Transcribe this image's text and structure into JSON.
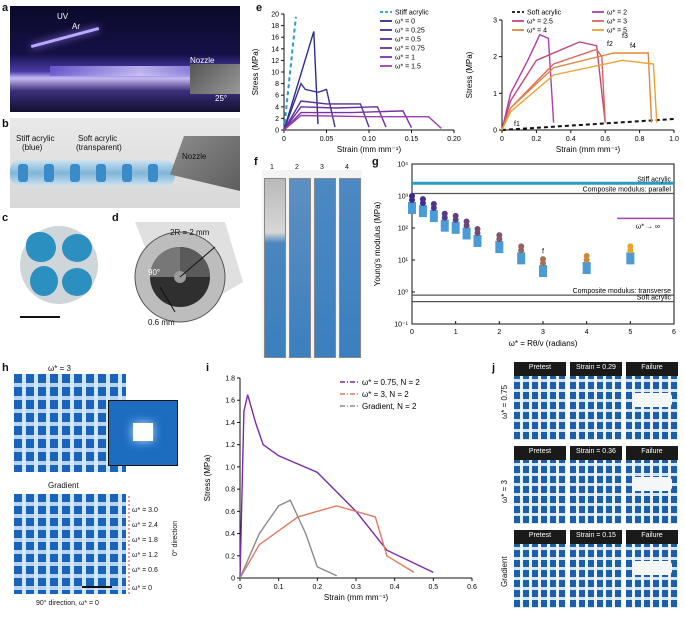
{
  "panels": {
    "a": {
      "letter": "a",
      "uv": "UV",
      "ar": "Ar",
      "nozzle": "Nozzle",
      "angle": "25°"
    },
    "b": {
      "letter": "b",
      "stiff": "Stiff acrylic",
      "stiff2": "(blue)",
      "soft": "Soft acrylic",
      "soft2": "(transparent)",
      "nozzle": "Nozzle"
    },
    "c": {
      "letter": "c"
    },
    "d": {
      "letter": "d",
      "radius": "2R = 2 mm",
      "angle": "90°",
      "thickness": "0.6 mm"
    },
    "e": {
      "letter": "e"
    },
    "f": {
      "letter": "f",
      "cols": [
        "1",
        "2",
        "3",
        "4"
      ]
    },
    "g": {
      "letter": "g"
    },
    "h": {
      "letter": "h",
      "top_label": "ω* = 3",
      "bottom_label": "Gradient",
      "grad_labels": [
        "ω* = 3.0",
        "ω* = 2.4",
        "ω* = 1.8",
        "ω* = 1.2",
        "ω* = 0.6",
        "ω* = 0"
      ],
      "dir0": "0° direction",
      "dir90": "90° direction, ω* = 0"
    },
    "i": {
      "letter": "i"
    },
    "j": {
      "letter": "j",
      "rows": [
        {
          "label": "ω* = 0.75",
          "heads": [
            "Pretest",
            "Strain = 0.29",
            "Failure"
          ]
        },
        {
          "label": "ω* = 3",
          "heads": [
            "Pretest",
            "Strain = 0.36",
            "Failure"
          ]
        },
        {
          "label": "Gradient",
          "heads": [
            "Pretest",
            "Strain = 0.15",
            "Failure"
          ]
        }
      ]
    }
  },
  "chart_data": [
    {
      "id": "e-left",
      "type": "line",
      "xlabel": "Strain (mm mm⁻¹)",
      "ylabel": "Stress (MPa)",
      "xlim": [
        0,
        0.2
      ],
      "ylim": [
        0,
        20
      ],
      "xticks": [
        "0",
        "0.05",
        "0.10",
        "0.15",
        "0.20"
      ],
      "yticks": [
        "0",
        "2",
        "4",
        "6",
        "8",
        "10",
        "12",
        "14",
        "16",
        "18",
        "20"
      ],
      "legend": "top-right",
      "series": [
        {
          "name": "Stiff acrylic",
          "color": "#2a9bc7",
          "dash": true,
          "points": [
            [
              0,
              0
            ],
            [
              0.014,
              19.5
            ]
          ]
        },
        {
          "name": "ω* = 0",
          "color": "#2c2d8a",
          "points": [
            [
              0,
              0
            ],
            [
              0.035,
              17
            ],
            [
              0.04,
              1
            ]
          ]
        },
        {
          "name": "ω* = 0.25",
          "color": "#3c2f95",
          "points": [
            [
              0,
              0
            ],
            [
              0.02,
              8
            ],
            [
              0.025,
              7
            ],
            [
              0.04,
              6.5
            ],
            [
              0.05,
              7
            ],
            [
              0.06,
              0.5
            ]
          ]
        },
        {
          "name": "ω* = 0.5",
          "color": "#55309c",
          "points": [
            [
              0,
              0
            ],
            [
              0.02,
              5
            ],
            [
              0.05,
              4.5
            ],
            [
              0.09,
              4.5
            ],
            [
              0.1,
              0.5
            ]
          ]
        },
        {
          "name": "ω* = 0.75",
          "color": "#6b2f9f",
          "points": [
            [
              0,
              0
            ],
            [
              0.02,
              4
            ],
            [
              0.06,
              3.8
            ],
            [
              0.11,
              4
            ],
            [
              0.12,
              0.5
            ]
          ]
        },
        {
          "name": "ω* = 1",
          "color": "#7b32a6",
          "points": [
            [
              0,
              0
            ],
            [
              0.02,
              3
            ],
            [
              0.08,
              3
            ],
            [
              0.14,
              3.3
            ],
            [
              0.15,
              0.4
            ]
          ]
        },
        {
          "name": "ω* = 1.5",
          "color": "#9c3fb0",
          "points": [
            [
              0,
              0
            ],
            [
              0.02,
              2.5
            ],
            [
              0.1,
              2.3
            ],
            [
              0.17,
              2.3
            ],
            [
              0.185,
              0.3
            ]
          ]
        }
      ]
    },
    {
      "id": "e-right",
      "type": "line",
      "xlabel": "Strain (mm mm⁻¹)",
      "ylabel": "Stress (MPa)",
      "xlim": [
        0,
        1.0
      ],
      "ylim": [
        0,
        3
      ],
      "xticks": [
        "0",
        "0.2",
        "0.4",
        "0.6",
        "0.8",
        "1.0"
      ],
      "yticks": [
        "0",
        "1",
        "2",
        "3"
      ],
      "legend": "top-right",
      "annotations": [
        "f1",
        "f2",
        "f3",
        "f4"
      ],
      "series": [
        {
          "name": "Soft acrylic",
          "color": "#111111",
          "dash": true,
          "points": [
            [
              0,
              0
            ],
            [
              1.0,
              0.3
            ]
          ]
        },
        {
          "name": "ω* = 2",
          "color": "#b03ea8",
          "points": [
            [
              0,
              0
            ],
            [
              0.05,
              1.0
            ],
            [
              0.15,
              1.9
            ],
            [
              0.22,
              2.6
            ],
            [
              0.27,
              2.5
            ],
            [
              0.3,
              0.2
            ]
          ]
        },
        {
          "name": "ω* = 2.5",
          "color": "#c8457a",
          "points": [
            [
              0,
              0
            ],
            [
              0.05,
              0.8
            ],
            [
              0.2,
              1.9
            ],
            [
              0.45,
              2.4
            ],
            [
              0.55,
              2.3
            ],
            [
              0.6,
              0.2
            ]
          ]
        },
        {
          "name": "ω* = 3",
          "color": "#d9665e",
          "points": [
            [
              0,
              0
            ],
            [
              0.05,
              0.6
            ],
            [
              0.3,
              1.8
            ],
            [
              0.55,
              2.2
            ],
            [
              0.58,
              2.0
            ],
            [
              0.6,
              0.2
            ]
          ]
        },
        {
          "name": "ω* = 4",
          "color": "#e1863d",
          "points": [
            [
              0,
              0
            ],
            [
              0.05,
              0.6
            ],
            [
              0.3,
              1.7
            ],
            [
              0.65,
              2.1
            ],
            [
              0.85,
              2.1
            ],
            [
              0.87,
              0.2
            ]
          ]
        },
        {
          "name": "ω* = 5",
          "color": "#eba334",
          "points": [
            [
              0,
              0
            ],
            [
              0.05,
              0.5
            ],
            [
              0.3,
              1.5
            ],
            [
              0.7,
              1.9
            ],
            [
              0.88,
              1.8
            ],
            [
              0.9,
              0.2
            ]
          ]
        }
      ]
    },
    {
      "id": "g",
      "type": "scatter",
      "xlabel": "ω* = Rθ/v (radians)",
      "ylabel": "Young's modulus (MPa)",
      "xlim": [
        0,
        6
      ],
      "ylim_log10": [
        -1,
        4
      ],
      "log_y": true,
      "xticks": [
        "0",
        "1",
        "2",
        "3",
        "4",
        "5",
        "6"
      ],
      "yticks": [
        "10⁻¹",
        "10⁰",
        "10¹",
        "10²",
        "10³",
        "10⁴"
      ],
      "lines": [
        {
          "label": "Stiff acrylic",
          "y": 2500,
          "color": "#2a9bc7"
        },
        {
          "label": "Composite modulus: parallel",
          "y": 1200,
          "color": "#555555"
        },
        {
          "label": "Composite modulus: transverse",
          "y": 0.8,
          "color": "#555555"
        },
        {
          "label": "Soft acrylic",
          "y": 0.5,
          "color": "#555555"
        }
      ],
      "limit_label": "ω* → ∞",
      "limit_y": 200,
      "point_label": "f",
      "points": [
        [
          0,
          750
        ],
        [
          0.25,
          600
        ],
        [
          0.5,
          420
        ],
        [
          0.75,
          210
        ],
        [
          1,
          180
        ],
        [
          1.25,
          120
        ],
        [
          1.5,
          70
        ],
        [
          2,
          45
        ],
        [
          2.5,
          20
        ],
        [
          3,
          8
        ],
        [
          4,
          10
        ],
        [
          5,
          20
        ]
      ]
    },
    {
      "id": "i",
      "type": "line",
      "xlabel": "Strain (mm mm⁻¹)",
      "ylabel": "Stress (MPa)",
      "xlim": [
        0,
        0.6
      ],
      "ylim": [
        0,
        1.8
      ],
      "xticks": [
        "0",
        "0.1",
        "0.2",
        "0.3",
        "0.4",
        "0.5",
        "0.6"
      ],
      "yticks": [
        "0",
        "0.2",
        "0.4",
        "0.6",
        "0.8",
        "1.0",
        "1.2",
        "1.4",
        "1.6",
        "1.8"
      ],
      "legend": "top-right",
      "series": [
        {
          "name": "ω* = 0.75, N = 2",
          "color": "#7b2aa8",
          "points": [
            [
              0,
              0
            ],
            [
              0.01,
              1.5
            ],
            [
              0.02,
              1.65
            ],
            [
              0.04,
              1.4
            ],
            [
              0.06,
              1.2
            ],
            [
              0.1,
              1.1
            ],
            [
              0.2,
              0.95
            ],
            [
              0.3,
              0.6
            ],
            [
              0.38,
              0.25
            ],
            [
              0.5,
              0.05
            ]
          ]
        },
        {
          "name": "ω* = 3, N = 2",
          "color": "#e07a5f",
          "points": [
            [
              0,
              0
            ],
            [
              0.05,
              0.3
            ],
            [
              0.15,
              0.55
            ],
            [
              0.25,
              0.65
            ],
            [
              0.35,
              0.55
            ],
            [
              0.38,
              0.2
            ],
            [
              0.45,
              0.05
            ]
          ]
        },
        {
          "name": "Gradient, N = 2",
          "color": "#8a8a8a",
          "points": [
            [
              0,
              0
            ],
            [
              0.05,
              0.4
            ],
            [
              0.1,
              0.65
            ],
            [
              0.13,
              0.7
            ],
            [
              0.17,
              0.4
            ],
            [
              0.2,
              0.1
            ],
            [
              0.25,
              0.02
            ]
          ]
        }
      ]
    }
  ]
}
